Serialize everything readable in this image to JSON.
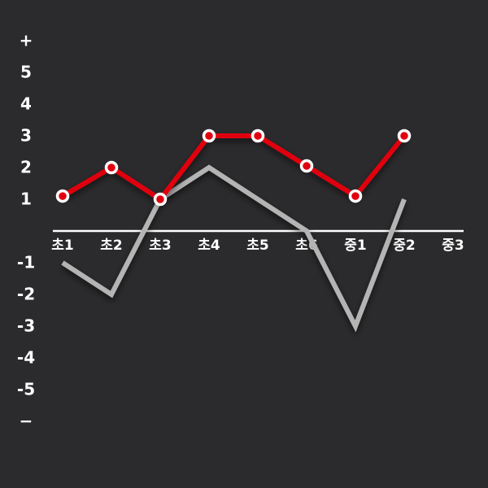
{
  "chart_data": {
    "type": "line",
    "categories": [
      "초1",
      "초2",
      "초3",
      "초4",
      "초5",
      "초6",
      "중1",
      "중2",
      "중3"
    ],
    "series": [
      {
        "color": "#b4b4b4",
        "values": [
          -1,
          -2,
          1,
          2,
          1,
          0,
          -3,
          1,
          null
        ]
      },
      {
        "color": "#e0000f",
        "values": [
          1.1,
          2,
          1,
          3,
          3,
          2.05,
          1.1,
          3,
          null
        ],
        "markers": true
      }
    ],
    "ylim": [
      -6,
      6
    ],
    "yticks": [
      {
        "value": 6,
        "label": "+"
      },
      5,
      4,
      3,
      2,
      1,
      -1,
      -2,
      -3,
      -4,
      -5,
      {
        "value": -6,
        "label": "−"
      }
    ]
  }
}
